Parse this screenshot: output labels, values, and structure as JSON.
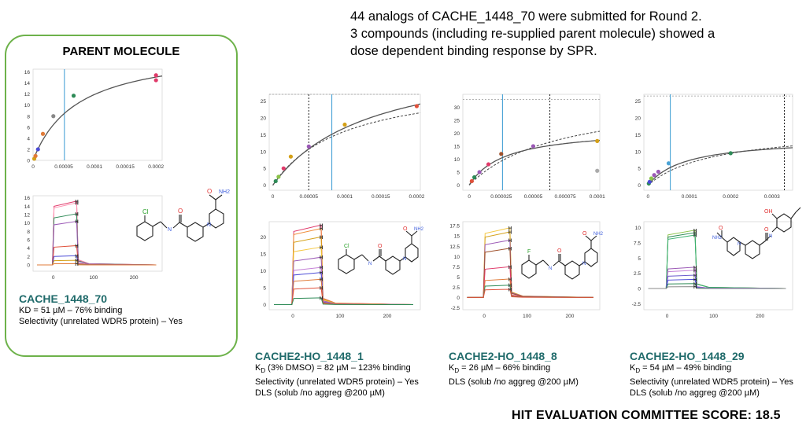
{
  "intro": [
    "44 analogs of CACHE_1448_70 were submitted for Round 2.",
    "3 compounds (including re-supplied parent molecule) showed a",
    "dose dependent binding response by SPR."
  ],
  "parent_title": "PARENT MOLECULE",
  "compounds": [
    {
      "name": "CACHE_1448_70",
      "lines": [
        "KD = 51 µM – 76% binding",
        "Selectivity (unrelated WDR5 protein) –  Yes"
      ]
    },
    {
      "name": "CACHE2-HO_1448_1",
      "kd_pre": "K",
      "kd_sub": "D",
      "kd_rest": " (3% DMSO) = 82 µM – 123% binding",
      "lines": [
        "Selectivity (unrelated WDR5 protein) – Yes",
        "DLS (solub /no aggreg @200 µM)"
      ]
    },
    {
      "name": "CACHE2-HO_1448_8",
      "kd_pre": "K",
      "kd_sub": "D",
      "kd_rest": " = 26 µM –  66% binding",
      "lines": [
        "DLS (solub /no aggreg @200 µM)"
      ]
    },
    {
      "name": "CACHE2-HO_1448_29",
      "kd_pre": "K",
      "kd_sub": "D",
      "kd_rest": " = 54 µM  – 49% binding",
      "lines": [
        "Selectivity (unrelated WDR5 protein) – Yes",
        "DLS (solub /no aggreg @200 µM)"
      ]
    }
  ],
  "score": "HIT EVALUATION COMMITTEE SCORE: 18.5",
  "molecule_labels": {
    "o": "O",
    "nh2": "NH2",
    "nh": "N",
    "h": "H",
    "n": "N",
    "cl": "Cl",
    "f": "F",
    "oh": "OH"
  },
  "colors": {
    "fit": "#555555",
    "kd_line": "#4aa3d6",
    "box": "#6db24a",
    "name": "#1f6a6a"
  },
  "chart_data": [
    {
      "type": "scatter",
      "id": "parent-affinity",
      "xlim": [
        0,
        0.00021
      ],
      "ylim": [
        0,
        16.5
      ],
      "xticks": [
        "0",
        "0.00005",
        "0.0001",
        "0.00015",
        "0.0002"
      ],
      "xtick_vals": [
        0,
        5e-05,
        0.0001,
        0.00015,
        0.0002
      ],
      "yticks": [
        "0",
        "2",
        "4",
        "6",
        "8",
        "10",
        "12",
        "14",
        "16"
      ],
      "ytick_vals": [
        0,
        2,
        4,
        6,
        8,
        10,
        12,
        14,
        16
      ],
      "points": [
        [
          2e-06,
          0.3,
          "#d4a017"
        ],
        [
          4e-06,
          0.8,
          "#e07b39"
        ],
        [
          8e-06,
          2.0,
          "#4b4bd6"
        ],
        [
          1.6e-05,
          4.8,
          "#e07b39"
        ],
        [
          3.3e-05,
          8.0,
          "#888888"
        ],
        [
          6.6e-05,
          11.7,
          "#2e8b57"
        ],
        [
          0.0002,
          14.5,
          "#e03a6a"
        ],
        [
          0.0002,
          15.4,
          "#e03a6a"
        ]
      ],
      "fit": {
        "rmax": 20.5,
        "kd": 7.2e-05
      },
      "kd_line": 5.1e-05
    },
    {
      "type": "line",
      "id": "parent-sensorgram",
      "xlim": [
        -50,
        270
      ],
      "ylim": [
        -1.5,
        16.5
      ],
      "xticks": [
        "0",
        "100",
        "200"
      ],
      "xtick_vals": [
        0,
        100,
        200
      ],
      "yticks": [
        "0",
        "2",
        "4",
        "6",
        "8",
        "10",
        "12",
        "14",
        "16"
      ],
      "ytick_vals": [
        0,
        2,
        4,
        6,
        8,
        10,
        12,
        14,
        16
      ],
      "levels": [
        15.2,
        14.8,
        12.2,
        10.4,
        4.6,
        2.2,
        1.1,
        0.3
      ],
      "colors": [
        "#e03a6a",
        "#ff8fb0",
        "#2e8b57",
        "#9b59b6",
        "#e0503a",
        "#4b4bd6",
        "#d4a017",
        "#e07b39"
      ],
      "inject": [
        0,
        58
      ]
    },
    {
      "type": "scatter",
      "id": "ho1-affinity",
      "xlim": [
        -5e-06,
        0.000205
      ],
      "ylim": [
        -1.5,
        27
      ],
      "xticks": [
        "0",
        "0.00005",
        "0.0001",
        "0.00015",
        "0.0002"
      ],
      "xtick_vals": [
        0,
        5e-05,
        0.0001,
        0.00015,
        0.0002
      ],
      "yticks": [
        "0",
        "5",
        "10",
        "15",
        "20",
        "25"
      ],
      "ytick_vals": [
        0,
        5,
        10,
        15,
        20,
        25
      ],
      "points": [
        [
          4e-06,
          1.2,
          "#2e8b57"
        ],
        [
          8e-06,
          2.5,
          "#8bc34a"
        ],
        [
          1.5e-05,
          5.0,
          "#e03a6a"
        ],
        [
          2.5e-05,
          8.5,
          "#d4a017"
        ],
        [
          5e-05,
          11.5,
          "#9b59b6"
        ],
        [
          0.0001,
          18.0,
          "#d4a017"
        ],
        [
          0.0002,
          23.5,
          "#e0503a"
        ]
      ],
      "fit": {
        "rmax": 40,
        "kd": 0.000135
      },
      "fit2": {
        "rmax": 32,
        "kd": 0.0001
      },
      "hline": 27,
      "kd_line": 8.2e-05,
      "dot_line": 5e-05
    },
    {
      "type": "line",
      "id": "ho1-sensorgram",
      "xlim": [
        -50,
        270
      ],
      "ylim": [
        -1.5,
        24.5
      ],
      "xticks": [
        "0",
        "100",
        "200"
      ],
      "xtick_vals": [
        0,
        100,
        200
      ],
      "yticks": [
        "0",
        "5",
        "10",
        "15",
        "20"
      ],
      "ytick_vals": [
        0,
        5,
        10,
        15,
        20
      ],
      "levels": [
        23.5,
        22.5,
        20,
        17,
        14,
        11,
        9.5,
        7.5,
        5,
        2
      ],
      "colors": [
        "#e03a6a",
        "#f08c3a",
        "#d4a017",
        "#f5c842",
        "#9b59b6",
        "#c47fd6",
        "#4b4bd6",
        "#e07b39",
        "#e0503a",
        "#2e8b57"
      ],
      "inject": [
        0,
        60
      ]
    },
    {
      "type": "scatter",
      "id": "ho8-affinity",
      "xlim": [
        -5e-06,
        0.000102
      ],
      "ylim": [
        -2,
        35
      ],
      "xticks": [
        "0",
        "0.000025",
        "0.00005",
        "0.000075",
        "0.0001"
      ],
      "xtick_vals": [
        0,
        2.5e-05,
        5e-05,
        7.5e-05,
        0.0001
      ],
      "yticks": [
        "0",
        "5",
        "10",
        "15",
        "20",
        "25",
        "30"
      ],
      "ytick_vals": [
        0,
        5,
        10,
        15,
        20,
        25,
        30
      ],
      "points": [
        [
          2e-06,
          1.5,
          "#e0503a"
        ],
        [
          4e-06,
          3.0,
          "#2e8b57"
        ],
        [
          8e-06,
          5.0,
          "#9b59b6"
        ],
        [
          1.5e-05,
          8.0,
          "#e03a6a"
        ],
        [
          2.5e-05,
          12.0,
          "#a0522d"
        ],
        [
          5e-05,
          15.0,
          "#9b59b6"
        ],
        [
          0.0001,
          17.0,
          "#d4a017"
        ],
        [
          0.0001,
          5.5,
          "#aaaaaa"
        ]
      ],
      "fit": {
        "rmax": 22,
        "kd": 2.8e-05
      },
      "fit2": {
        "rmax": 35,
        "kd": 7e-05
      },
      "hline": 33,
      "kd_line": 2.6e-05,
      "dot_line": 6.3e-05
    },
    {
      "type": "line",
      "id": "ho8-sensorgram",
      "xlim": [
        -50,
        270
      ],
      "ylim": [
        -3,
        18.5
      ],
      "xticks": [
        "0",
        "100",
        "200"
      ],
      "xtick_vals": [
        0,
        100,
        200
      ],
      "yticks": [
        "-2.5",
        "0",
        "2.5",
        "5",
        "7.5",
        "10",
        "12.5",
        "15",
        "17.5"
      ],
      "ytick_vals": [
        -2.5,
        0,
        2.5,
        5,
        7.5,
        10,
        12.5,
        15,
        17.5
      ],
      "levels": [
        17,
        16,
        14,
        12,
        7.5,
        4.5,
        3,
        2
      ],
      "colors": [
        "#f5c842",
        "#d4a017",
        "#9b59b6",
        "#a0522d",
        "#e03a6a",
        "#e07b39",
        "#2e8b57",
        "#e0503a"
      ],
      "inject": [
        0,
        60
      ]
    },
    {
      "type": "scatter",
      "id": "ho29-affinity",
      "xlim": [
        -1e-05,
        0.00035
      ],
      "ylim": [
        -1.5,
        27
      ],
      "xticks": [
        "0",
        "0.0001",
        "0.0002",
        "0.0003"
      ],
      "xtick_vals": [
        0,
        0.0001,
        0.0002,
        0.0003
      ],
      "yticks": [
        "0",
        "5",
        "10",
        "15",
        "20",
        "25"
      ],
      "ytick_vals": [
        0,
        5,
        10,
        15,
        20,
        25
      ],
      "points": [
        [
          2e-06,
          0.5,
          "#2e8b57"
        ],
        [
          4e-06,
          1.0,
          "#4b4bd6"
        ],
        [
          8e-06,
          2.0,
          "#8bc34a"
        ],
        [
          1.5e-05,
          3.0,
          "#9b59b6"
        ],
        [
          2.5e-05,
          4.0,
          "#9b59b6"
        ],
        [
          5e-05,
          6.5,
          "#4aa3d6"
        ],
        [
          0.0002,
          9.5,
          "#2e8b57"
        ]
      ],
      "fit": {
        "rmax": 14,
        "kd": 9e-05
      },
      "fit2": {
        "rmax": 17,
        "kd": 0.00016
      },
      "hline": 26.5,
      "kd_line": 5.4e-05,
      "dot_line": 0.00033
    },
    {
      "type": "line",
      "id": "ho29-sensorgram",
      "xlim": [
        -50,
        270
      ],
      "ylim": [
        -3.5,
        11
      ],
      "xticks": [
        "0",
        "100",
        "200"
      ],
      "xtick_vals": [
        0,
        100,
        200
      ],
      "yticks": [
        "-2.5",
        "0",
        "2.5",
        "5",
        "7.5",
        "10"
      ],
      "ytick_vals": [
        -2.5,
        0,
        2.5,
        5,
        7.5,
        10
      ],
      "levels": [
        9.6,
        9.2,
        8.8,
        3.5,
        3.0,
        2.2,
        1.5,
        0.8,
        0.3
      ],
      "colors": [
        "#8bc34a",
        "#2e8b57",
        "#3cb371",
        "#9b59b6",
        "#c47fd6",
        "#6a5acd",
        "#4b4bd6",
        "#2e8b57",
        "#888888"
      ],
      "inject": [
        0,
        60
      ]
    }
  ]
}
